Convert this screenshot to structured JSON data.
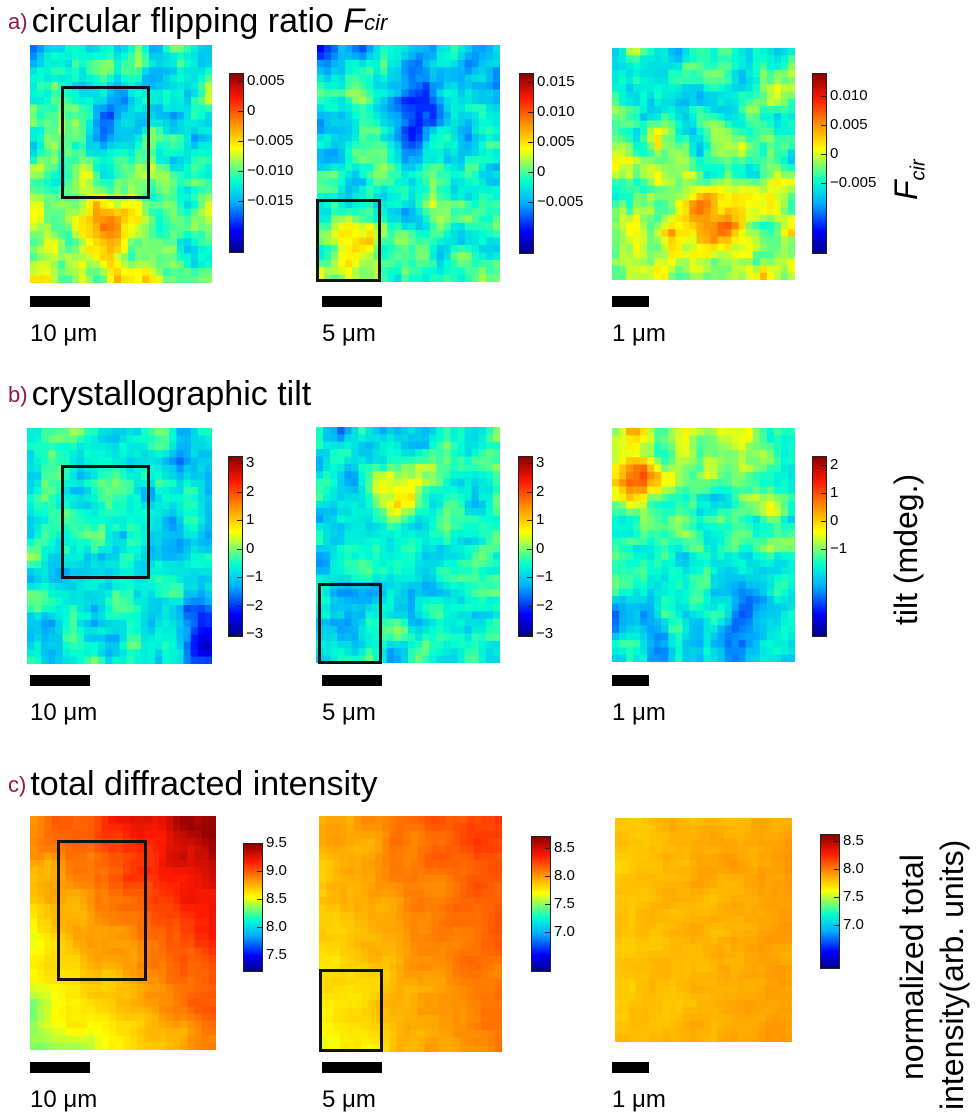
{
  "rows": [
    {
      "letter": "a)",
      "title": "circular flipping ratio ",
      "title_symbol": "F",
      "title_sub": "cir",
      "side_label": "F",
      "side_label_sub": "cir",
      "panels": [
        {
          "scale_label": "10 μm",
          "cb_ticks": [
            "0.005",
            "0",
            "−0.005",
            "−0.010",
            "−0.015"
          ]
        },
        {
          "scale_label": "5 μm",
          "cb_ticks": [
            "0.015",
            "0.010",
            "0.005",
            "0",
            "−0.005"
          ]
        },
        {
          "scale_label": "1 μm",
          "cb_ticks": [
            "0.010",
            "0.005",
            "0",
            "−0.005"
          ]
        }
      ]
    },
    {
      "letter": "b)",
      "title": "crystallographic tilt",
      "side_label": "tilt (mdeg.)",
      "panels": [
        {
          "scale_label": "10 μm",
          "cb_ticks": [
            "3",
            "2",
            "1",
            "0",
            "−1",
            "−2",
            "−3"
          ]
        },
        {
          "scale_label": "5 μm",
          "cb_ticks": [
            "3",
            "2",
            "1",
            "0",
            "−1",
            "−2",
            "−3"
          ]
        },
        {
          "scale_label": "1 μm",
          "cb_ticks": [
            "2",
            "1",
            "0",
            "−1"
          ]
        }
      ]
    },
    {
      "letter": "c)",
      "title": "total diffracted intensity",
      "side_label_1": "normalized total",
      "side_label_2": "intensity(arb. units)",
      "panels": [
        {
          "scale_label": "10 μm",
          "cb_ticks": [
            "9.5",
            "9.0",
            "8.5",
            "8.0",
            "7.5"
          ]
        },
        {
          "scale_label": "5 μm",
          "cb_ticks": [
            "8.5",
            "8.0",
            "7.5",
            "7.0"
          ]
        },
        {
          "scale_label": "1 μm",
          "cb_ticks": [
            "8.5",
            "8.0",
            "7.5",
            "7.0"
          ]
        }
      ]
    }
  ],
  "chart_data": {
    "type": "heatmap",
    "colormap": "jet",
    "maps": [
      {
        "row": "a",
        "panel": 1,
        "colorbar_range": [
          -0.018,
          0.007
        ],
        "scale_bar": "10 μm",
        "roi": true
      },
      {
        "row": "a",
        "panel": 2,
        "colorbar_range": [
          -0.009,
          0.017
        ],
        "scale_bar": "5 μm",
        "roi": true
      },
      {
        "row": "a",
        "panel": 3,
        "colorbar_range": [
          -0.008,
          0.013
        ],
        "scale_bar": "1 μm",
        "roi": false
      },
      {
        "row": "b",
        "panel": 1,
        "colorbar_range": [
          -3.3,
          3.2
        ],
        "scale_bar": "10 μm",
        "roi": true
      },
      {
        "row": "b",
        "panel": 2,
        "colorbar_range": [
          -3.3,
          3.2
        ],
        "scale_bar": "5 μm",
        "roi": true
      },
      {
        "row": "b",
        "panel": 3,
        "colorbar_range": [
          -1.9,
          2.4
        ],
        "scale_bar": "1 μm",
        "roi": false
      },
      {
        "row": "c",
        "panel": 1,
        "colorbar_range": [
          7.4,
          9.6
        ],
        "scale_bar": "10 μm",
        "roi": true
      },
      {
        "row": "c",
        "panel": 2,
        "colorbar_range": [
          6.9,
          8.9
        ],
        "scale_bar": "5 μm",
        "roi": true
      },
      {
        "row": "c",
        "panel": 3,
        "colorbar_range": [
          6.7,
          8.8
        ],
        "scale_bar": "1 μm",
        "roi": false
      }
    ]
  }
}
